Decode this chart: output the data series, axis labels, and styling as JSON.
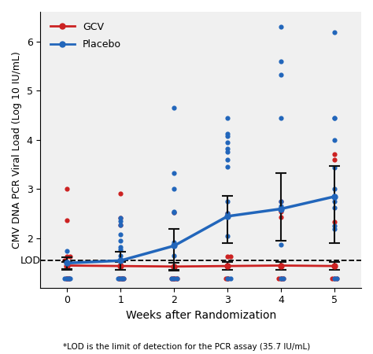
{
  "xlabel": "Weeks after Randomization",
  "ylabel": "CMV DNA PCR Viral Load (Log 10 IU/mL)",
  "footnote": "*LOD is the limit of detection for the PCR assay (35.7 IU/mL)",
  "lod_label": "LOD",
  "lod_value": 1.553,
  "ylim": [
    1.0,
    6.6
  ],
  "xlim": [
    -0.5,
    5.5
  ],
  "weeks": [
    0,
    1,
    2,
    3,
    4,
    5
  ],
  "gcv_color": "#cc2222",
  "placebo_color": "#2266bb",
  "error_color": "#111111",
  "gcv_mean": [
    1.45,
    1.44,
    1.43,
    1.44,
    1.45,
    1.44
  ],
  "gcv_err_low": [
    0.08,
    0.08,
    0.08,
    0.08,
    0.08,
    0.08
  ],
  "gcv_err_high": [
    0.08,
    0.08,
    0.08,
    0.08,
    0.08,
    0.08
  ],
  "placebo_mean": [
    1.5,
    1.55,
    1.85,
    2.45,
    2.6,
    2.85
  ],
  "placebo_err_low": [
    0.12,
    0.18,
    0.48,
    0.55,
    0.65,
    0.95
  ],
  "placebo_err_high": [
    0.12,
    0.18,
    0.35,
    0.42,
    0.72,
    0.62
  ],
  "gcv_jitter": [
    [
      0.0,
      2.37
    ],
    [
      0.0,
      1.63
    ],
    [
      0.05,
      1.63
    ],
    [
      -0.05,
      1.55
    ],
    [
      0.02,
      1.19
    ],
    [
      -0.02,
      1.19
    ],
    [
      0.0,
      1.19
    ],
    [
      0.04,
      1.19
    ],
    [
      0.0,
      3.0
    ],
    [
      1.0,
      2.91
    ],
    [
      1.05,
      1.19
    ],
    [
      0.97,
      1.19
    ],
    [
      1.02,
      1.19
    ],
    [
      0.98,
      1.19
    ],
    [
      1.0,
      2.41
    ],
    [
      1.0,
      2.27
    ],
    [
      1.03,
      1.19
    ],
    [
      2.0,
      1.19
    ],
    [
      2.05,
      1.19
    ],
    [
      1.95,
      1.19
    ],
    [
      2.02,
      1.19
    ],
    [
      1.98,
      1.19
    ],
    [
      2.0,
      2.53
    ],
    [
      3.0,
      2.52
    ],
    [
      3.0,
      1.63
    ],
    [
      3.05,
      1.63
    ],
    [
      3.02,
      1.19
    ],
    [
      2.97,
      1.19
    ],
    [
      3.0,
      1.19
    ],
    [
      4.0,
      1.19
    ],
    [
      4.05,
      1.19
    ],
    [
      3.95,
      1.19
    ],
    [
      4.02,
      1.19
    ],
    [
      4.0,
      2.44
    ],
    [
      4.0,
      2.55
    ],
    [
      4.0,
      2.75
    ],
    [
      5.0,
      1.19
    ],
    [
      5.05,
      1.19
    ],
    [
      4.95,
      1.19
    ],
    [
      5.0,
      2.33
    ],
    [
      5.0,
      3.6
    ],
    [
      5.0,
      3.71
    ]
  ],
  "placebo_jitter": [
    [
      0.0,
      1.19
    ],
    [
      -0.05,
      1.19
    ],
    [
      0.05,
      1.19
    ],
    [
      0.02,
      1.19
    ],
    [
      0.0,
      1.75
    ],
    [
      1.0,
      1.19
    ],
    [
      1.05,
      1.19
    ],
    [
      0.95,
      1.19
    ],
    [
      1.02,
      1.19
    ],
    [
      1.0,
      1.65
    ],
    [
      1.0,
      1.78
    ],
    [
      1.0,
      1.82
    ],
    [
      1.0,
      1.95
    ],
    [
      1.0,
      2.08
    ],
    [
      1.0,
      2.27
    ],
    [
      1.0,
      2.35
    ],
    [
      1.0,
      2.41
    ],
    [
      2.0,
      1.19
    ],
    [
      2.05,
      1.19
    ],
    [
      1.95,
      1.19
    ],
    [
      2.0,
      1.65
    ],
    [
      2.0,
      1.92
    ],
    [
      2.0,
      2.53
    ],
    [
      2.0,
      2.55
    ],
    [
      2.0,
      3.0
    ],
    [
      2.0,
      3.33
    ],
    [
      2.0,
      4.65
    ],
    [
      3.0,
      1.19
    ],
    [
      3.05,
      1.19
    ],
    [
      3.0,
      2.05
    ],
    [
      3.0,
      2.52
    ],
    [
      3.0,
      2.75
    ],
    [
      3.0,
      3.45
    ],
    [
      3.0,
      3.6
    ],
    [
      3.0,
      3.75
    ],
    [
      3.0,
      3.82
    ],
    [
      3.0,
      3.95
    ],
    [
      3.0,
      4.08
    ],
    [
      3.0,
      4.44
    ],
    [
      3.0,
      4.13
    ],
    [
      4.0,
      1.19
    ],
    [
      4.05,
      1.19
    ],
    [
      4.0,
      1.88
    ],
    [
      4.0,
      2.62
    ],
    [
      4.0,
      2.65
    ],
    [
      4.0,
      2.75
    ],
    [
      4.0,
      4.44
    ],
    [
      4.0,
      5.33
    ],
    [
      4.0,
      5.6
    ],
    [
      4.0,
      6.3
    ],
    [
      5.0,
      1.19
    ],
    [
      5.05,
      1.19
    ],
    [
      5.0,
      2.2
    ],
    [
      5.0,
      2.25
    ],
    [
      5.0,
      2.62
    ],
    [
      5.0,
      2.75
    ],
    [
      5.0,
      3.0
    ],
    [
      5.0,
      3.44
    ],
    [
      5.0,
      4.0
    ],
    [
      5.0,
      4.44
    ],
    [
      5.0,
      4.44
    ],
    [
      5.0,
      6.18
    ]
  ],
  "yticks": [
    2,
    3,
    4,
    5,
    6
  ],
  "background_color": "#f0f0f0"
}
